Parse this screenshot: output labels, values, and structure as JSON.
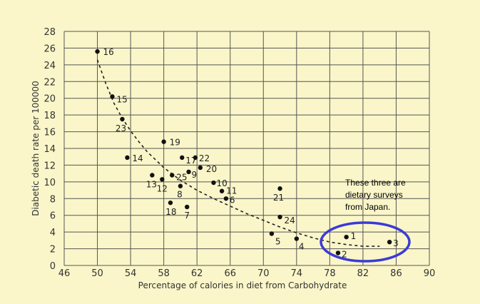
{
  "chart_data": {
    "type": "scatter",
    "xlabel": "Percentage of calories in diet from Carbohydrate",
    "ylabel": "Diabetic death rate per 100000",
    "xlim": [
      46,
      90
    ],
    "ylim": [
      0,
      28
    ],
    "x_ticks": [
      46,
      50,
      54,
      58,
      62,
      66,
      70,
      74,
      78,
      82,
      86,
      90
    ],
    "y_ticks": [
      0,
      2,
      4,
      6,
      8,
      10,
      12,
      14,
      16,
      18,
      20,
      22,
      24,
      26,
      28
    ],
    "grid": true,
    "points": [
      {
        "label": "16",
        "x": 50.0,
        "y": 25.6
      },
      {
        "label": "15",
        "x": 51.8,
        "y": 20.2
      },
      {
        "label": "23",
        "x": 53.0,
        "y": 17.5
      },
      {
        "label": "19",
        "x": 58.0,
        "y": 14.8
      },
      {
        "label": "14",
        "x": 53.6,
        "y": 12.9
      },
      {
        "label": "17",
        "x": 60.2,
        "y": 12.9
      },
      {
        "label": "22",
        "x": 61.8,
        "y": 12.9
      },
      {
        "label": "20",
        "x": 62.4,
        "y": 11.7
      },
      {
        "label": "9",
        "x": 61.0,
        "y": 11.2
      },
      {
        "label": "25",
        "x": 59.0,
        "y": 10.8
      },
      {
        "label": "13",
        "x": 56.6,
        "y": 10.8
      },
      {
        "label": "12",
        "x": 57.8,
        "y": 10.3
      },
      {
        "label": "10",
        "x": 64.0,
        "y": 9.9
      },
      {
        "label": "8",
        "x": 60.0,
        "y": 9.5
      },
      {
        "label": "11",
        "x": 65.0,
        "y": 8.9
      },
      {
        "label": "6",
        "x": 65.5,
        "y": 8.0
      },
      {
        "label": "21",
        "x": 72.0,
        "y": 9.2
      },
      {
        "label": "18",
        "x": 58.8,
        "y": 7.5
      },
      {
        "label": "7",
        "x": 60.8,
        "y": 7.0
      },
      {
        "label": "24",
        "x": 72.0,
        "y": 5.8
      },
      {
        "label": "5",
        "x": 71.0,
        "y": 3.8
      },
      {
        "label": "4",
        "x": 74.0,
        "y": 3.2
      },
      {
        "label": "1",
        "x": 80.0,
        "y": 3.4
      },
      {
        "label": "2",
        "x": 79.0,
        "y": 1.5
      },
      {
        "label": "3",
        "x": 85.2,
        "y": 2.8
      }
    ],
    "trend_curve": [
      {
        "x": 50.0,
        "y": 24.6
      },
      {
        "x": 51.0,
        "y": 21.8
      },
      {
        "x": 52.0,
        "y": 19.4
      },
      {
        "x": 53.0,
        "y": 17.6
      },
      {
        "x": 54.0,
        "y": 16.1
      },
      {
        "x": 55.0,
        "y": 14.8
      },
      {
        "x": 56.0,
        "y": 13.6
      },
      {
        "x": 58.0,
        "y": 11.7
      },
      {
        "x": 60.0,
        "y": 10.2
      },
      {
        "x": 62.0,
        "y": 9.0
      },
      {
        "x": 64.0,
        "y": 8.0
      },
      {
        "x": 66.0,
        "y": 7.1
      },
      {
        "x": 68.0,
        "y": 6.2
      },
      {
        "x": 70.0,
        "y": 5.4
      },
      {
        "x": 72.0,
        "y": 4.6
      },
      {
        "x": 74.0,
        "y": 3.9
      },
      {
        "x": 76.0,
        "y": 3.3
      },
      {
        "x": 78.0,
        "y": 2.8
      },
      {
        "x": 80.0,
        "y": 2.5
      },
      {
        "x": 82.0,
        "y": 2.3
      },
      {
        "x": 84.0,
        "y": 2.3
      }
    ],
    "annotation": {
      "lines": [
        "These three are",
        "dietary surveys",
        "from Japan."
      ],
      "highlight_color": "#3b3bd6"
    }
  }
}
